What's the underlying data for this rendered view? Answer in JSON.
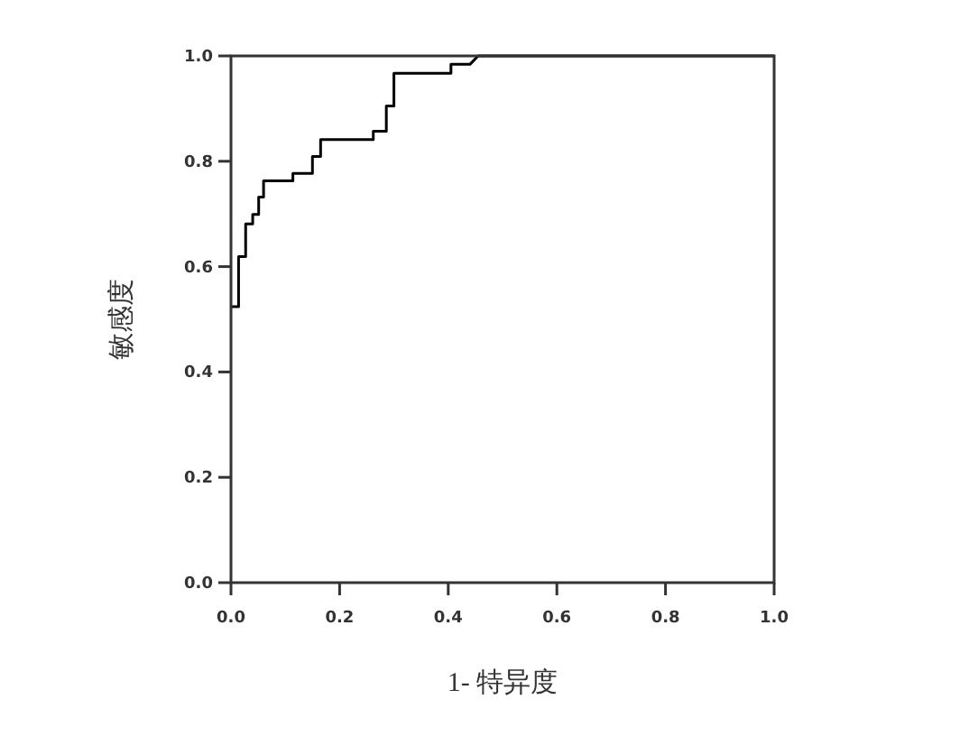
{
  "chart_data": {
    "type": "line",
    "xlabel": "1- 特异度",
    "ylabel": "敏感度",
    "xlim": [
      0,
      1
    ],
    "ylim": [
      0,
      1
    ],
    "xticks": [
      {
        "value": 0,
        "label": "0.0"
      },
      {
        "value": 0.2,
        "label": "0.2"
      },
      {
        "value": 0.4,
        "label": "0.4"
      },
      {
        "value": 0.6,
        "label": "0.6"
      },
      {
        "value": 0.8,
        "label": "0.8"
      },
      {
        "value": 1,
        "label": "1.0"
      }
    ],
    "yticks": [
      {
        "value": 0,
        "label": "0.0"
      },
      {
        "value": 0.2,
        "label": "0.2"
      },
      {
        "value": 0.4,
        "label": "0.4"
      },
      {
        "value": 0.6,
        "label": "0.6"
      },
      {
        "value": 0.8,
        "label": "0.8"
      },
      {
        "value": 1,
        "label": "1.0"
      }
    ],
    "grid": false,
    "marker": "none",
    "line_style": "solid",
    "series": [
      {
        "color": "#000000",
        "x": [
          0,
          0.014,
          0.014,
          0.027,
          0.027,
          0.04,
          0.04,
          0.051,
          0.051,
          0.06,
          0.06,
          0.114,
          0.114,
          0.15,
          0.15,
          0.165,
          0.165,
          0.262,
          0.262,
          0.286,
          0.286,
          0.3,
          0.3,
          0.405,
          0.405,
          0.44,
          0.455,
          1
        ],
        "values": [
          0.524,
          0.524,
          0.619,
          0.619,
          0.681,
          0.681,
          0.699,
          0.699,
          0.732,
          0.732,
          0.763,
          0.763,
          0.777,
          0.777,
          0.809,
          0.809,
          0.841,
          0.841,
          0.857,
          0.857,
          0.905,
          0.905,
          0.967,
          0.967,
          0.984,
          0.984,
          1,
          1
        ]
      }
    ]
  }
}
